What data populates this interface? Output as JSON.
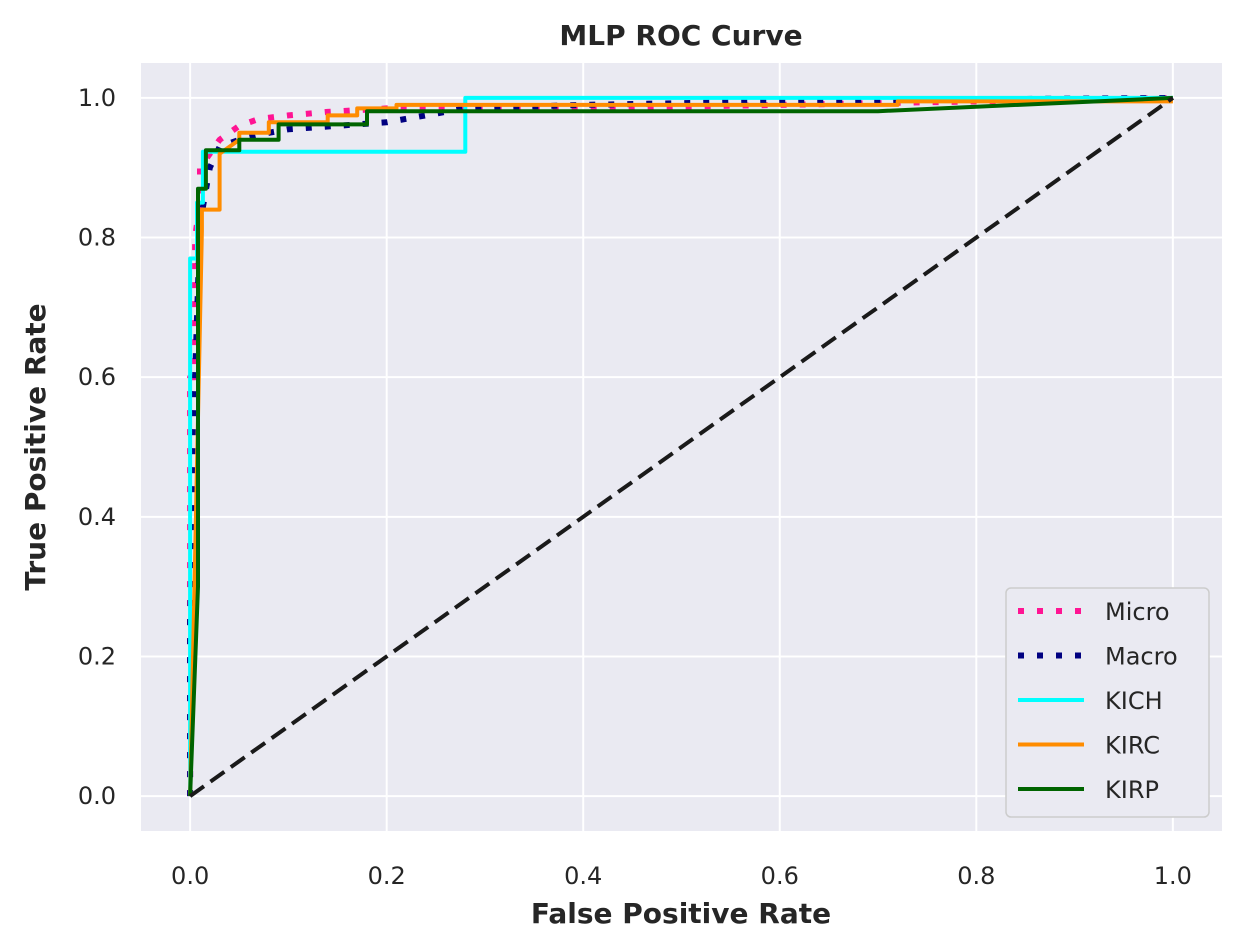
{
  "chart_data": {
    "type": "line",
    "title": "MLP ROC Curve",
    "xlabel": "False Positive Rate",
    "ylabel": "True Positive Rate",
    "xlim": [
      -0.05,
      1.05
    ],
    "ylim": [
      -0.05,
      1.05
    ],
    "xticks": [
      "0.0",
      "0.2",
      "0.4",
      "0.6",
      "0.8",
      "1.0"
    ],
    "yticks": [
      "0.0",
      "0.2",
      "0.4",
      "0.6",
      "0.8",
      "1.0"
    ],
    "grid": true,
    "legend_position": "lower-right",
    "series": [
      {
        "name": "Micro",
        "color": "#ff1493",
        "style": "dotted",
        "x": [
          0.0,
          0.0,
          0.005,
          0.005,
          0.01,
          0.01,
          0.02,
          0.03,
          0.04,
          0.05,
          0.07,
          0.1,
          0.14,
          0.2,
          0.4,
          0.6,
          0.8,
          1.0
        ],
        "y": [
          0.0,
          0.6,
          0.6,
          0.8,
          0.85,
          0.9,
          0.92,
          0.94,
          0.95,
          0.96,
          0.97,
          0.975,
          0.98,
          0.985,
          0.985,
          0.99,
          0.995,
          1.0
        ]
      },
      {
        "name": "Macro",
        "color": "#000080",
        "style": "dotted",
        "x": [
          0.0,
          0.0,
          0.005,
          0.01,
          0.02,
          0.03,
          0.05,
          0.08,
          0.1,
          0.15,
          0.2,
          0.28,
          0.4,
          0.6,
          0.8,
          1.0
        ],
        "y": [
          0.0,
          0.25,
          0.6,
          0.82,
          0.9,
          0.93,
          0.94,
          0.95,
          0.955,
          0.96,
          0.965,
          0.985,
          0.99,
          0.995,
          0.998,
          1.0
        ]
      },
      {
        "name": "KICH",
        "color": "#00ffff",
        "style": "solid",
        "x": [
          0.0,
          0.0,
          0.007,
          0.007,
          0.013,
          0.013,
          0.28,
          0.28,
          1.0
        ],
        "y": [
          0.0,
          0.77,
          0.77,
          0.85,
          0.85,
          0.923,
          0.923,
          1.0,
          1.0
        ]
      },
      {
        "name": "KIRC",
        "color": "#ff8c00",
        "style": "solid",
        "x": [
          0.0,
          0.012,
          0.012,
          0.02,
          0.02,
          0.03,
          0.03,
          0.05,
          0.05,
          0.08,
          0.08,
          0.14,
          0.14,
          0.17,
          0.17,
          0.21,
          0.21,
          0.72,
          0.72,
          1.0
        ],
        "y": [
          0.0,
          0.81,
          0.84,
          0.84,
          0.84,
          0.84,
          0.92,
          0.94,
          0.95,
          0.95,
          0.965,
          0.965,
          0.975,
          0.975,
          0.985,
          0.985,
          0.99,
          0.99,
          0.995,
          0.995
        ]
      },
      {
        "name": "KIRP",
        "color": "#006400",
        "style": "solid",
        "x": [
          0.0,
          0.008,
          0.008,
          0.016,
          0.016,
          0.05,
          0.05,
          0.09,
          0.09,
          0.18,
          0.18,
          0.7,
          1.0
        ],
        "y": [
          0.0,
          0.3,
          0.87,
          0.87,
          0.925,
          0.925,
          0.94,
          0.94,
          0.962,
          0.962,
          0.981,
          0.981,
          1.0
        ]
      },
      {
        "name": "",
        "color": "#1a1a1a",
        "style": "dashed",
        "x": [
          0.0,
          1.0
        ],
        "y": [
          0.0,
          1.0
        ]
      }
    ]
  }
}
